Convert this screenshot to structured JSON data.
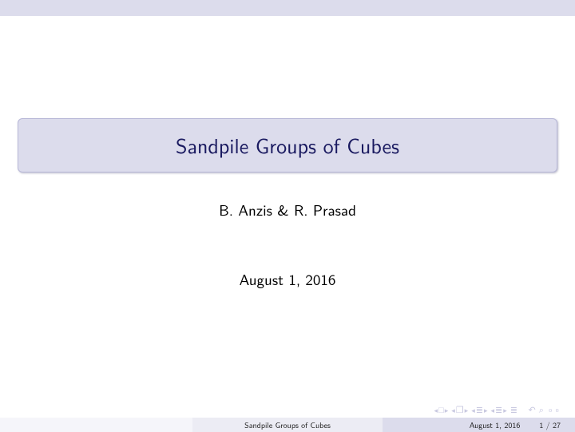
{
  "colors": {
    "band_bg": "#dcdcec",
    "title_text": "#1a1a60",
    "title_border": "#b8b8d8",
    "nav_color": "#c8c8e0",
    "footer_left_bg": "#f5f5fa",
    "footer_mid_bg": "#ececf4",
    "footer_right_bg": "#dcdcec",
    "page_bg": "#ffffff",
    "text": "#000000"
  },
  "typography": {
    "title_fontsize": 26,
    "body_fontsize": 19,
    "footer_fontsize": 10,
    "nav_fontsize": 11,
    "family": "sans-serif"
  },
  "title": "Sandpile Groups of Cubes",
  "authors": "B. Anzis & R. Prasad",
  "date": "August 1, 2016",
  "footer": {
    "mid": "Sandpile Groups of Cubes",
    "date": "August 1, 2016",
    "page": "1 / 27"
  },
  "nav": {
    "frame_prev": "◂",
    "frame_next": "▸",
    "frame_box": "□",
    "section_box": "❐",
    "sub_prev": "◂",
    "sub_next": "▸",
    "slide_sym": "≣",
    "end": "≣",
    "back": "↶",
    "search": "⌕",
    "circles": "◦◦"
  }
}
